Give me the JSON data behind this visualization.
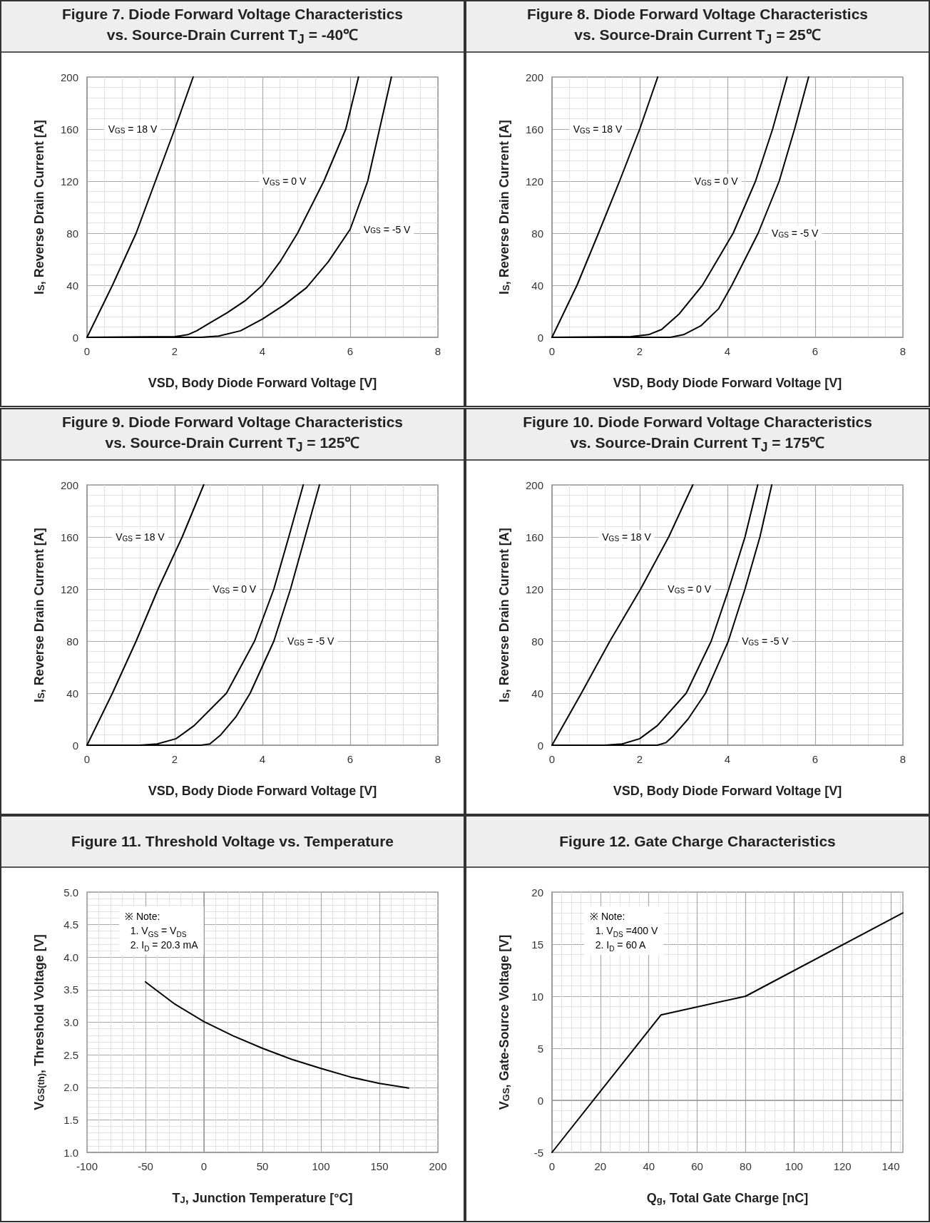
{
  "chart_data": [
    {
      "type": "line",
      "title": "Figure 7. Diode Forward Voltage Characteristics\nvs. Source-Drain Current T$_{J}$ = -40℃",
      "xlabel": "VSD, Body Diode Forward Voltage [V]",
      "ylabel": "I$_{S}$, Reverse Drain Current [A]",
      "xlim": [
        0,
        8
      ],
      "ylim": [
        0,
        200
      ],
      "xticks": [
        0,
        2,
        4,
        6,
        8
      ],
      "yticks": [
        0,
        40,
        80,
        120,
        160,
        200
      ],
      "grid": true,
      "series": [
        {
          "name": "V$_{GS}$ = 18 V",
          "color": "#000000",
          "x": [
            0,
            0.58,
            1.12,
            1.56,
            2.0,
            2.42
          ],
          "values": [
            0,
            40,
            80,
            120,
            160,
            200
          ]
        },
        {
          "name": "V$_{GS}$ = 0 V",
          "color": "#000000",
          "x": [
            0,
            2,
            2.3,
            2.5,
            2.8,
            3.2,
            3.6,
            4.0,
            4.4,
            4.8,
            5.4,
            5.9,
            6.19
          ],
          "values": [
            0,
            0.5,
            2,
            5,
            11,
            19,
            28,
            40,
            58,
            80,
            120,
            160,
            200
          ]
        },
        {
          "name": "V$_{GS}$ = -5 V",
          "color": "#000000",
          "x": [
            0,
            2.6,
            3.0,
            3.5,
            4.0,
            4.5,
            5.0,
            5.5,
            6.0,
            6.4,
            6.67,
            6.94
          ],
          "values": [
            0,
            0,
            1,
            5,
            14,
            25,
            38,
            58,
            83,
            120,
            160,
            200
          ]
        }
      ]
    },
    {
      "type": "line",
      "title": "Figure 8. Diode Forward Voltage Characteristics\nvs. Source-Drain Current T$_{J}$ = 25℃",
      "xlabel": "VSD, Body Diode Forward Voltage [V]",
      "ylabel": "I$_{S}$, Reverse Drain Current [A]",
      "xlim": [
        0,
        8
      ],
      "ylim": [
        0,
        200
      ],
      "xticks": [
        0,
        2,
        4,
        6,
        8
      ],
      "yticks": [
        0,
        40,
        80,
        120,
        160,
        200
      ],
      "grid": true,
      "series": [
        {
          "name": "V$_{GS}$ = 18 V",
          "color": "#000000",
          "x": [
            0,
            0.57,
            1.06,
            1.54,
            2.0,
            2.41
          ],
          "values": [
            0,
            40,
            80,
            120,
            160,
            200
          ]
        },
        {
          "name": "V$_{GS}$ = 0 V",
          "color": "#000000",
          "x": [
            0,
            1.8,
            2.2,
            2.5,
            2.9,
            3.43,
            4.13,
            4.64,
            5.03,
            5.36
          ],
          "values": [
            0,
            0.5,
            2,
            6,
            18,
            40,
            80,
            120,
            160,
            200
          ]
        },
        {
          "name": "V$_{GS}$ = -5 V",
          "color": "#000000",
          "x": [
            0,
            2.7,
            3.0,
            3.4,
            3.8,
            4.1,
            4.7,
            5.18,
            5.53,
            5.85
          ],
          "values": [
            0,
            0,
            2,
            9,
            22,
            40,
            80,
            120,
            160,
            200
          ]
        }
      ]
    },
    {
      "type": "line",
      "title": "Figure 9. Diode Forward Voltage Characteristics\nvs. Source-Drain Current T$_{J}$ = 125℃",
      "xlabel": "VSD, Body Diode Forward Voltage [V]",
      "ylabel": "I$_{S}$, Reverse Drain Current [A]",
      "xlim": [
        0,
        8
      ],
      "ylim": [
        0,
        200
      ],
      "xticks": [
        0,
        2,
        4,
        6,
        8
      ],
      "yticks": [
        0,
        40,
        80,
        120,
        160,
        200
      ],
      "grid": true,
      "series": [
        {
          "name": "V$_{GS}$ = 18 V",
          "color": "#000000",
          "x": [
            0,
            0.58,
            1.12,
            1.62,
            2.17,
            2.66
          ],
          "values": [
            0,
            40,
            80,
            120,
            160,
            200
          ]
        },
        {
          "name": "V$_{GS}$ = 0 V",
          "color": "#000000",
          "x": [
            0,
            1.2,
            1.6,
            2.03,
            2.44,
            3.18,
            3.82,
            4.26,
            4.6,
            4.93
          ],
          "values": [
            0,
            0,
            1,
            5,
            15,
            40,
            80,
            120,
            160,
            200
          ]
        },
        {
          "name": "V$_{GS}$ = -5 V",
          "color": "#000000",
          "x": [
            0,
            2.6,
            2.8,
            3.05,
            3.4,
            3.72,
            4.26,
            4.64,
            4.97,
            5.3
          ],
          "values": [
            0,
            0,
            1,
            8,
            22,
            40,
            80,
            120,
            160,
            200
          ]
        }
      ]
    },
    {
      "type": "line",
      "title": "Figure 10. Diode Forward Voltage Characteristics\nvs. Source-Drain Current T$_{J}$ = 175℃",
      "xlabel": "VSD, Body Diode Forward Voltage [V]",
      "ylabel": "I$_{S}$, Reverse Drain Current [A]",
      "xlim": [
        0,
        8
      ],
      "ylim": [
        0,
        200
      ],
      "xticks": [
        0,
        2,
        4,
        6,
        8
      ],
      "yticks": [
        0,
        40,
        80,
        120,
        160,
        200
      ],
      "grid": true,
      "series": [
        {
          "name": "V$_{GS}$ = 18 V",
          "color": "#000000",
          "x": [
            0,
            0.67,
            1.32,
            2.02,
            2.66,
            3.21
          ],
          "values": [
            0,
            40,
            80,
            120,
            160,
            200
          ]
        },
        {
          "name": "V$_{GS}$ = 0 V",
          "color": "#000000",
          "x": [
            0,
            1.2,
            1.6,
            2.0,
            2.4,
            3.06,
            3.63,
            4.03,
            4.4,
            4.69
          ],
          "values": [
            0,
            0,
            1,
            5,
            15,
            40,
            80,
            120,
            160,
            200
          ]
        },
        {
          "name": "V$_{GS}$ = -5 V",
          "color": "#000000",
          "x": [
            0,
            2.4,
            2.6,
            2.76,
            3.1,
            3.5,
            4.02,
            4.4,
            4.74,
            5.01
          ],
          "values": [
            0,
            0,
            2,
            7,
            20,
            40,
            80,
            120,
            160,
            200
          ]
        }
      ]
    },
    {
      "type": "line",
      "title": "Figure 11. Threshold Voltage vs. Temperature",
      "xlabel": "T$_{J}$, Junction Temperature [°C]",
      "ylabel": "V$_{GS(th)}$, Threshold Voltage [V]",
      "xlim": [
        -100,
        200
      ],
      "ylim": [
        1,
        5
      ],
      "xticks": [
        -100,
        -50,
        0,
        50,
        100,
        150,
        200
      ],
      "yticks": [
        {
          "value": 1,
          "label": "1.0"
        },
        1.5,
        {
          "value": 2,
          "label": "2.0"
        },
        2.5,
        {
          "value": 3,
          "label": "3.0"
        },
        3.5,
        {
          "value": 4,
          "label": "4.0"
        },
        4.5,
        {
          "value": 5,
          "label": "5.0"
        }
      ],
      "grid": true,
      "series": [
        {
          "color": "#000000",
          "x": [
            -50,
            -25,
            0,
            25,
            50,
            75,
            100,
            125,
            150,
            175
          ],
          "values": [
            3.62,
            3.28,
            3.01,
            2.79,
            2.6,
            2.43,
            2.29,
            2.16,
            2.06,
            1.99
          ]
        }
      ],
      "annotations": [
        "※ Note:\n  1. V$_{GS}$ = V$_{DS}$\n  2. I$_{D}$ = 20.3 mA"
      ]
    },
    {
      "type": "line",
      "title": "Figure 12. Gate Charge Characteristics",
      "xlabel": "Q$_{g}$, Total Gate Charge [nC]",
      "ylabel": "V$_{GS}$, Gate-Source Voltage [V]",
      "xlim": [
        0,
        145
      ],
      "ylim": [
        -5,
        20
      ],
      "xticks": [
        0,
        20,
        40,
        60,
        80,
        100,
        120,
        140
      ],
      "yticks": [
        -5,
        0,
        5,
        10,
        15,
        20
      ],
      "grid": true,
      "series": [
        {
          "color": "#000000",
          "x": [
            0,
            45,
            80,
            145
          ],
          "values": [
            -5,
            8.2,
            10,
            18
          ]
        }
      ],
      "annotations": [
        "※ Note:\n  1. V$_{DS}$ =400 V\n  2. I$_{D}$ = 60 A"
      ]
    }
  ]
}
